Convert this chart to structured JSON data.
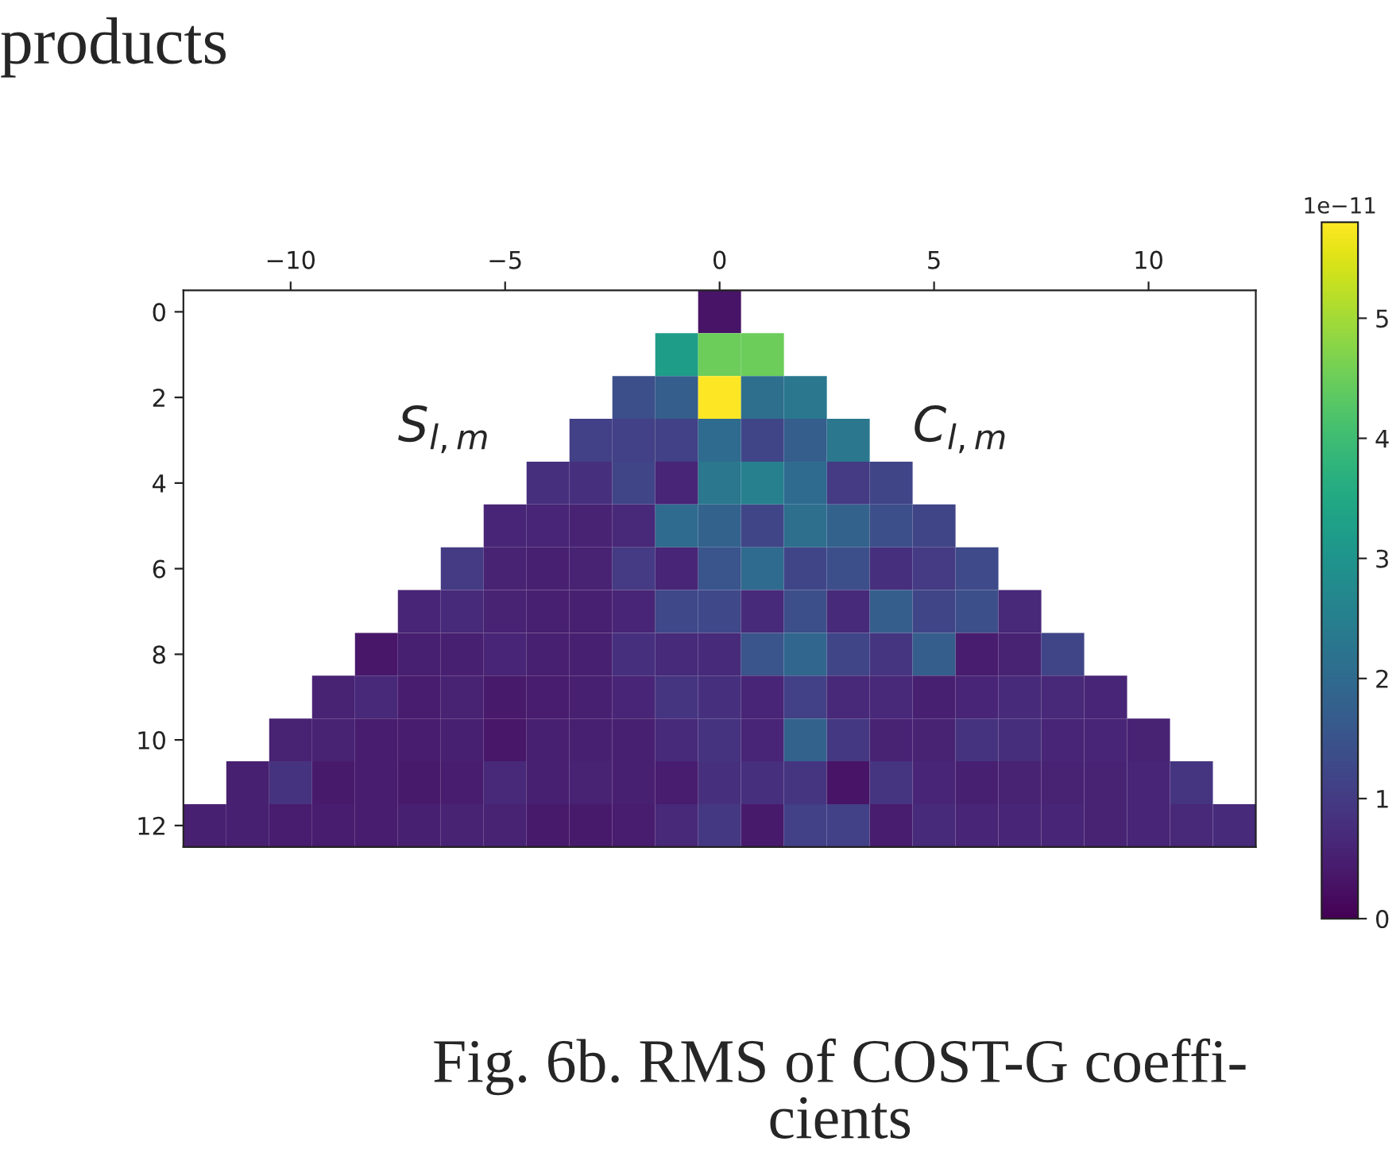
{
  "chart_data": {
    "type": "heatmap",
    "categories": [
      null,
      null,
      "−10",
      null,
      null,
      null,
      null,
      "−5",
      null,
      null,
      null,
      null,
      "0",
      null,
      null,
      null,
      null,
      "5",
      null,
      null,
      null,
      null,
      "10",
      null,
      null
    ],
    "y_categories": [
      "0",
      null,
      "2",
      null,
      "4",
      null,
      "6",
      null,
      "8",
      null,
      "10",
      null,
      "12"
    ],
    "cells": [
      [
        null,
        null,
        null,
        null,
        null,
        null,
        null,
        null,
        null,
        null,
        null,
        null,
        0.3,
        null,
        null,
        null,
        null,
        null,
        null,
        null,
        null,
        null,
        null,
        null,
        null
      ],
      [
        null,
        null,
        null,
        null,
        null,
        null,
        null,
        null,
        null,
        null,
        null,
        3.2,
        4.5,
        4.5,
        null,
        null,
        null,
        null,
        null,
        null,
        null,
        null,
        null,
        null,
        null
      ],
      [
        null,
        null,
        null,
        null,
        null,
        null,
        null,
        null,
        null,
        null,
        1.4,
        1.7,
        5.8,
        2.1,
        2.3,
        null,
        null,
        null,
        null,
        null,
        null,
        null,
        null,
        null,
        null
      ],
      [
        null,
        null,
        null,
        null,
        null,
        null,
        null,
        null,
        null,
        1.1,
        1.1,
        1.1,
        2.0,
        1.2,
        1.7,
        2.3,
        null,
        null,
        null,
        null,
        null,
        null,
        null,
        null,
        null
      ],
      [
        null,
        null,
        null,
        null,
        null,
        null,
        null,
        null,
        0.8,
        0.8,
        1.2,
        0.6,
        2.3,
        2.5,
        2.0,
        1.0,
        1.2,
        null,
        null,
        null,
        null,
        null,
        null,
        null,
        null
      ],
      [
        null,
        null,
        null,
        null,
        null,
        null,
        null,
        0.6,
        0.6,
        0.55,
        0.65,
        2.0,
        1.8,
        1.2,
        2.1,
        1.8,
        1.4,
        1.2,
        null,
        null,
        null,
        null,
        null,
        null,
        null
      ],
      [
        null,
        null,
        null,
        null,
        null,
        null,
        1.0,
        0.55,
        0.5,
        0.55,
        1.0,
        0.6,
        1.5,
        2.0,
        1.2,
        1.4,
        0.8,
        1.0,
        1.3,
        null,
        null,
        null,
        null,
        null,
        null
      ],
      [
        null,
        null,
        null,
        null,
        null,
        0.6,
        0.7,
        0.55,
        0.5,
        0.5,
        0.6,
        1.25,
        1.25,
        0.7,
        1.4,
        0.7,
        1.7,
        1.2,
        1.4,
        0.65,
        null,
        null,
        null,
        null,
        null
      ],
      [
        null,
        null,
        null,
        null,
        0.35,
        0.5,
        0.5,
        0.6,
        0.5,
        0.5,
        0.8,
        0.7,
        0.7,
        1.5,
        1.9,
        1.2,
        0.9,
        1.7,
        0.45,
        0.55,
        1.2,
        null,
        null,
        null,
        null
      ],
      [
        null,
        null,
        null,
        0.55,
        0.65,
        0.45,
        0.55,
        0.4,
        0.45,
        0.5,
        0.6,
        0.9,
        0.8,
        0.6,
        1.1,
        0.65,
        0.65,
        0.5,
        0.6,
        0.7,
        0.65,
        0.6,
        null,
        null,
        null
      ],
      [
        null,
        null,
        0.55,
        0.55,
        0.45,
        0.45,
        0.5,
        0.35,
        0.5,
        0.5,
        0.5,
        0.7,
        0.85,
        0.6,
        1.8,
        0.95,
        0.55,
        0.55,
        0.85,
        0.75,
        0.6,
        0.6,
        0.55,
        null,
        null
      ],
      [
        null,
        0.5,
        0.85,
        0.4,
        0.45,
        0.4,
        0.45,
        0.65,
        0.5,
        0.55,
        0.5,
        0.45,
        0.8,
        0.8,
        0.9,
        0.3,
        0.9,
        0.6,
        0.5,
        0.55,
        0.55,
        0.55,
        0.6,
        0.9,
        null
      ],
      [
        0.5,
        0.5,
        0.45,
        0.45,
        0.45,
        0.5,
        0.55,
        0.55,
        0.4,
        0.4,
        0.45,
        0.65,
        0.95,
        0.4,
        1.1,
        1.1,
        0.45,
        0.7,
        0.6,
        0.6,
        0.6,
        0.55,
        0.6,
        0.65,
        0.7
      ]
    ],
    "clim": [
      0,
      5.8
    ],
    "cticks": [
      0,
      1,
      2,
      3,
      4,
      5
    ],
    "clabel": "1e−11",
    "annotations": [
      "products",
      "S$_{l,m}$",
      "C$_{l,m}$",
      "Fig. 6b. RMS of COST-G coeffi-\ncients"
    ]
  }
}
